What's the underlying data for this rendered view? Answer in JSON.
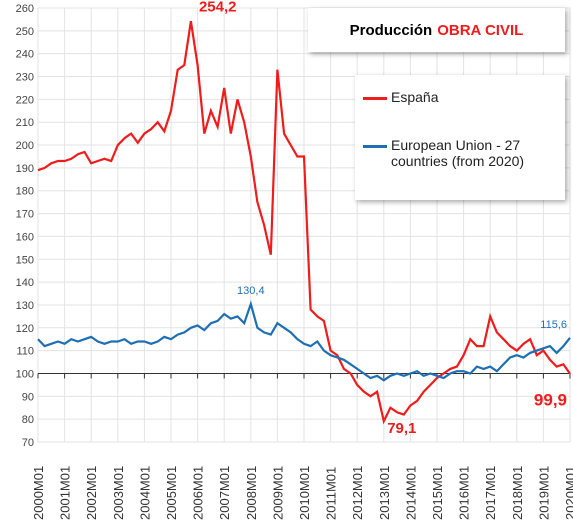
{
  "chart_data": {
    "type": "line",
    "title": "Producción",
    "title_highlight": "OBRA CIVIL",
    "categories": [
      "2000M01",
      null,
      null,
      null,
      "2001M01",
      null,
      null,
      null,
      "2002M01",
      null,
      null,
      null,
      "2003M01",
      null,
      null,
      null,
      "2004M01",
      null,
      null,
      null,
      "2005M01",
      null,
      null,
      null,
      "2006M01",
      null,
      null,
      null,
      "2007M01",
      null,
      null,
      null,
      "2008M01",
      null,
      null,
      null,
      "2009M01",
      null,
      null,
      null,
      "2010M01",
      null,
      null,
      null,
      "2011M01",
      null,
      null,
      null,
      "2012M01",
      null,
      null,
      null,
      "2013M01",
      null,
      null,
      null,
      "2014M01",
      null,
      null,
      null,
      "2015M01",
      null,
      null,
      null,
      "2016M01",
      null,
      null,
      null,
      "2017M01",
      null,
      null,
      null,
      "2018M01",
      null,
      null,
      null,
      "2019M01",
      null,
      null,
      null,
      "2020M01"
    ],
    "series": [
      {
        "name": "España",
        "color": "#ee1c1c",
        "values": [
          189,
          190,
          192,
          193,
          193,
          194,
          196,
          197,
          192,
          193,
          194,
          193,
          200,
          203,
          205,
          201,
          205,
          207,
          210,
          206,
          215,
          233,
          235,
          254.2,
          235,
          205,
          215,
          208,
          225,
          205,
          220,
          210,
          195,
          175,
          165,
          152,
          233,
          205,
          200,
          195,
          195,
          128,
          125,
          123,
          110,
          108,
          102,
          100,
          95,
          92,
          90,
          92,
          79.1,
          85,
          83,
          82,
          86,
          88,
          92,
          95,
          98,
          100,
          102,
          103,
          108,
          115,
          112,
          112,
          125,
          118,
          115,
          112,
          110,
          113,
          115,
          108,
          110,
          106,
          103,
          104,
          99.9
        ],
        "value_labels": [
          null,
          null,
          null,
          null,
          null,
          null,
          null,
          null,
          null,
          null,
          null,
          null,
          null,
          null,
          null,
          null,
          null,
          null,
          null,
          null,
          null,
          null,
          null,
          "254,2",
          null,
          null,
          null,
          null,
          null,
          null,
          null,
          null,
          null,
          null,
          null,
          null,
          null,
          null,
          null,
          null,
          null,
          null,
          null,
          null,
          null,
          null,
          null,
          null,
          null,
          null,
          null,
          null,
          "79,1",
          null,
          null,
          null,
          null,
          null,
          null,
          null,
          null,
          null,
          null,
          null,
          null,
          null,
          null,
          null,
          null,
          null,
          null,
          null,
          null,
          null,
          null,
          null,
          null,
          null,
          null,
          null,
          "99,9"
        ]
      },
      {
        "name": "European Union - 27 countries (from 2020)",
        "color": "#1f6fb4",
        "values": [
          115,
          112,
          113,
          114,
          113,
          115,
          114,
          115,
          116,
          114,
          113,
          114,
          114,
          115,
          113,
          114,
          114,
          113,
          114,
          116,
          115,
          117,
          118,
          120,
          121,
          119,
          122,
          123,
          126,
          124,
          125,
          122,
          130.4,
          120,
          118,
          117,
          122,
          120,
          118,
          115,
          113,
          112,
          114,
          110,
          108,
          107,
          106,
          104,
          102,
          100,
          98,
          99,
          97,
          99,
          100,
          99,
          100,
          101,
          99,
          100,
          99,
          98,
          100,
          101,
          101,
          100,
          103,
          102,
          103,
          101,
          104,
          107,
          108,
          107,
          109,
          110,
          111,
          112,
          109,
          112,
          115.6
        ],
        "value_labels": [
          null,
          null,
          null,
          null,
          null,
          null,
          null,
          null,
          null,
          null,
          null,
          null,
          null,
          null,
          null,
          null,
          null,
          null,
          null,
          null,
          null,
          null,
          null,
          null,
          null,
          null,
          null,
          null,
          null,
          null,
          null,
          null,
          "130,4",
          null,
          null,
          null,
          null,
          null,
          null,
          null,
          null,
          null,
          null,
          null,
          null,
          null,
          null,
          null,
          null,
          null,
          null,
          null,
          null,
          null,
          null,
          null,
          null,
          null,
          null,
          null,
          null,
          null,
          null,
          null,
          null,
          null,
          null,
          null,
          null,
          null,
          null,
          null,
          null,
          null,
          null,
          null,
          null,
          null,
          null,
          null,
          "115,6"
        ]
      }
    ],
    "ylim": [
      70,
      260
    ],
    "yticks": [
      70,
      80,
      90,
      100,
      110,
      120,
      130,
      140,
      150,
      160,
      170,
      180,
      190,
      200,
      210,
      220,
      230,
      240,
      250,
      260
    ],
    "x_axis_at": 100,
    "grid": true
  }
}
